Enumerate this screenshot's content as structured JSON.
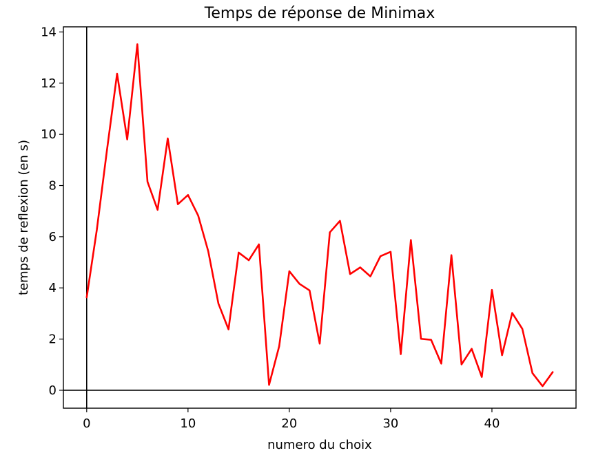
{
  "chart_data": {
    "type": "line",
    "title": "Temps de réponse de Minimax",
    "xlabel": "numero du choix",
    "ylabel": "temps de reflexion (en s)",
    "xlim": [
      -2.3,
      48.3
    ],
    "ylim": [
      -0.7,
      14.2
    ],
    "xticks": [
      0,
      10,
      20,
      30,
      40
    ],
    "yticks": [
      0,
      2,
      4,
      6,
      8,
      10,
      12,
      14
    ],
    "grid": false,
    "reference_lines": {
      "horizontal_at": 0,
      "vertical_at": 0
    },
    "series": [
      {
        "color": "#ff0000",
        "x": [
          0,
          1,
          2,
          3,
          4,
          5,
          6,
          7,
          8,
          9,
          10,
          11,
          12,
          13,
          14,
          15,
          16,
          17,
          18,
          19,
          20,
          21,
          22,
          23,
          24,
          25,
          26,
          27,
          28,
          29,
          30,
          31,
          32,
          33,
          34,
          35,
          36,
          37,
          38,
          39,
          40,
          41,
          42,
          43,
          44,
          45,
          46
        ],
        "y": [
          3.63,
          6.27,
          9.38,
          12.37,
          9.8,
          13.52,
          8.15,
          7.05,
          9.84,
          7.27,
          7.63,
          6.83,
          5.43,
          3.39,
          2.38,
          5.38,
          5.08,
          5.7,
          0.21,
          1.72,
          4.65,
          4.16,
          3.9,
          1.82,
          6.17,
          6.62,
          4.54,
          4.8,
          4.45,
          5.24,
          5.41,
          1.41,
          5.87,
          2.01,
          1.97,
          1.04,
          5.28,
          1.01,
          1.62,
          0.52,
          3.92,
          1.37,
          3.02,
          2.4,
          0.67,
          0.16,
          0.71
        ]
      }
    ]
  }
}
